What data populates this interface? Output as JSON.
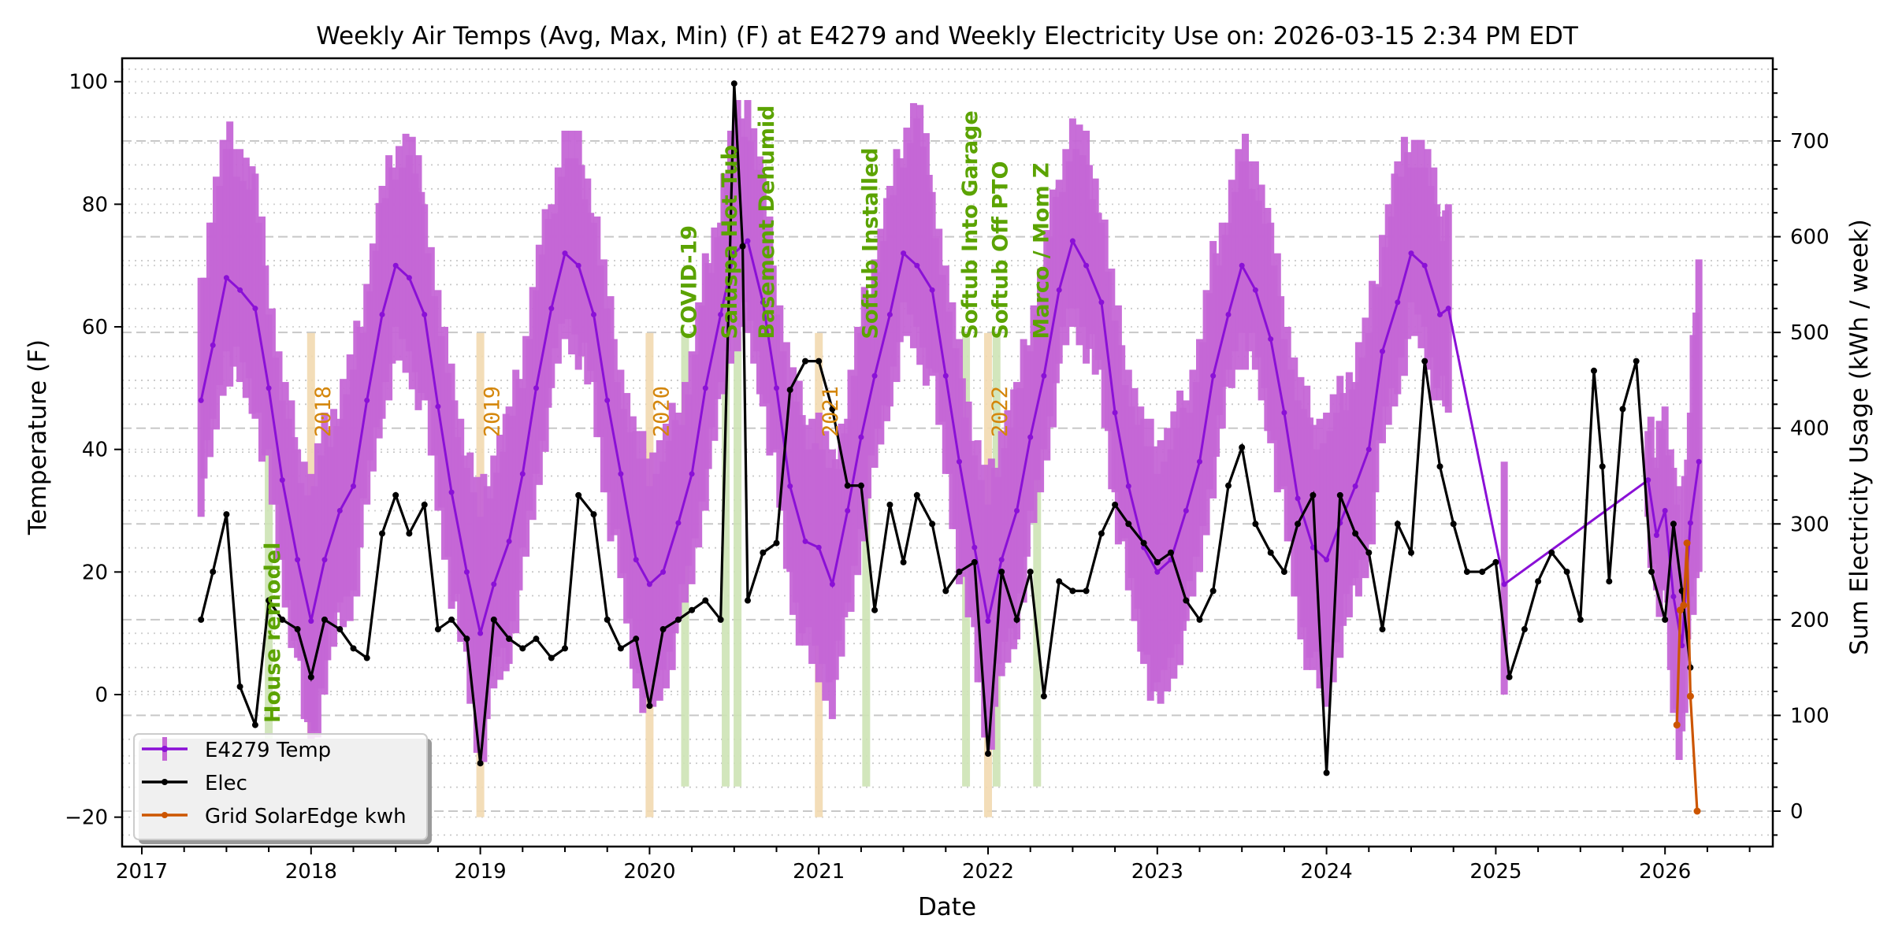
{
  "chart_data": {
    "type": "line",
    "title": "Weekly Air Temps (Avg, Max, Min) (F) at E4279 and Weekly Electricity Use on: 2026-03-15 2:34 PM EDT",
    "xlabel": "Date",
    "ylabel_left": "Temperature (F)",
    "ylabel_right": "Sum Electricity Usage (kWh / week)",
    "xlim": [
      2016.9,
      2026.6
    ],
    "ylim_left": [
      -25,
      104
    ],
    "ylim_right": [
      -37,
      786
    ],
    "x_ticks": [
      "2017",
      "2018",
      "2019",
      "2020",
      "2021",
      "2022",
      "2023",
      "2024",
      "2025",
      "2026"
    ],
    "y_ticks_left": [
      "-20",
      "0",
      "20",
      "40",
      "60",
      "80",
      "100"
    ],
    "y_ticks_right": [
      "0",
      "100",
      "200",
      "300",
      "400",
      "500",
      "600",
      "700"
    ],
    "grid": true,
    "legend_position": "lower-left",
    "legend": [
      "E4279 Temp",
      "Elec",
      "Grid SolarEdge kwh"
    ],
    "colors": {
      "temp_line": "#8a10d6",
      "temp_range": "#c566d6",
      "elec": "#000000",
      "solar": "#cc5500",
      "annotation_green": "#5ba300",
      "band_green": "#cde3b5",
      "annotation_year": "#d4860b",
      "band_year": "#f2d9b0"
    },
    "series": [
      {
        "name": "E4279 Temp",
        "axis": "left",
        "x": [
          2017.35,
          2017.42,
          2017.5,
          2017.58,
          2017.67,
          2017.75,
          2017.83,
          2017.92,
          2018.0,
          2018.08,
          2018.17,
          2018.25,
          2018.33,
          2018.42,
          2018.5,
          2018.58,
          2018.67,
          2018.75,
          2018.83,
          2018.92,
          2019.0,
          2019.08,
          2019.17,
          2019.25,
          2019.33,
          2019.42,
          2019.5,
          2019.58,
          2019.67,
          2019.75,
          2019.83,
          2019.92,
          2020.0,
          2020.08,
          2020.17,
          2020.25,
          2020.33,
          2020.42,
          2020.5,
          2020.58,
          2020.67,
          2020.75,
          2020.83,
          2020.92,
          2021.0,
          2021.08,
          2021.17,
          2021.25,
          2021.33,
          2021.42,
          2021.5,
          2021.58,
          2021.67,
          2021.75,
          2021.83,
          2021.92,
          2022.0,
          2022.08,
          2022.17,
          2022.25,
          2022.33,
          2022.42,
          2022.5,
          2022.58,
          2022.67,
          2022.75,
          2022.83,
          2022.92,
          2023.0,
          2023.08,
          2023.17,
          2023.25,
          2023.33,
          2023.42,
          2023.5,
          2023.58,
          2023.67,
          2023.75,
          2023.83,
          2023.92,
          2024.0,
          2024.08,
          2024.17,
          2024.25,
          2024.33,
          2024.42,
          2024.5,
          2024.58,
          2024.67,
          2024.72,
          2025.05,
          2025.9,
          2025.95,
          2026.0,
          2026.05,
          2026.1,
          2026.15,
          2026.2
        ],
        "avg": [
          48,
          57,
          68,
          66,
          63,
          50,
          35,
          22,
          12,
          22,
          30,
          34,
          48,
          62,
          70,
          68,
          62,
          47,
          33,
          20,
          10,
          18,
          25,
          36,
          50,
          63,
          72,
          70,
          62,
          48,
          36,
          22,
          18,
          20,
          28,
          36,
          50,
          62,
          72,
          74,
          64,
          50,
          34,
          25,
          24,
          18,
          30,
          42,
          52,
          62,
          72,
          70,
          66,
          52,
          38,
          24,
          12,
          22,
          30,
          42,
          52,
          66,
          74,
          70,
          64,
          46,
          34,
          24,
          20,
          22,
          30,
          38,
          52,
          62,
          70,
          66,
          58,
          46,
          32,
          24,
          22,
          28,
          34,
          40,
          56,
          64,
          72,
          70,
          62,
          63,
          18,
          35,
          26,
          30,
          16,
          8,
          28,
          38
        ],
        "min": [
          33,
          42,
          55,
          52,
          48,
          36,
          20,
          6,
          -12,
          4,
          12,
          16,
          32,
          48,
          56,
          54,
          48,
          32,
          18,
          4,
          -10,
          2,
          8,
          20,
          34,
          50,
          60,
          57,
          48,
          32,
          20,
          4,
          -2,
          2,
          12,
          20,
          34,
          48,
          60,
          60,
          50,
          36,
          18,
          8,
          4,
          0,
          12,
          26,
          38,
          50,
          60,
          58,
          52,
          38,
          22,
          8,
          -8,
          4,
          12,
          26,
          38,
          54,
          62,
          58,
          50,
          32,
          18,
          8,
          -2,
          4,
          12,
          22,
          36,
          50,
          58,
          54,
          44,
          30,
          14,
          4,
          0,
          10,
          16,
          24,
          42,
          52,
          60,
          58,
          48,
          48,
          4,
          26,
          16,
          18,
          0,
          -10,
          14,
          20
        ],
        "max": [
          64,
          80,
          90,
          88,
          82,
          66,
          50,
          40,
          34,
          42,
          48,
          54,
          66,
          80,
          88,
          90,
          80,
          64,
          50,
          40,
          30,
          38,
          44,
          54,
          68,
          80,
          90,
          88,
          80,
          64,
          52,
          40,
          38,
          40,
          46,
          54,
          68,
          80,
          92,
          96,
          82,
          66,
          52,
          44,
          44,
          36,
          48,
          60,
          70,
          80,
          90,
          96,
          82,
          68,
          54,
          42,
          32,
          42,
          48,
          60,
          70,
          84,
          92,
          88,
          80,
          62,
          52,
          42,
          40,
          42,
          48,
          56,
          70,
          80,
          88,
          86,
          74,
          62,
          50,
          44,
          44,
          48,
          54,
          60,
          74,
          84,
          90,
          88,
          78,
          78,
          34,
          46,
          38,
          46,
          34,
          28,
          48,
          71
        ]
      },
      {
        "name": "Elec",
        "axis": "right",
        "x": [
          2017.35,
          2017.42,
          2017.5,
          2017.58,
          2017.67,
          2017.75,
          2017.83,
          2017.92,
          2018.0,
          2018.08,
          2018.17,
          2018.25,
          2018.33,
          2018.42,
          2018.5,
          2018.58,
          2018.67,
          2018.75,
          2018.83,
          2018.92,
          2019.0,
          2019.08,
          2019.17,
          2019.25,
          2019.33,
          2019.42,
          2019.5,
          2019.58,
          2019.67,
          2019.75,
          2019.83,
          2019.92,
          2020.0,
          2020.08,
          2020.17,
          2020.25,
          2020.33,
          2020.42,
          2020.5,
          2020.55,
          2020.58,
          2020.67,
          2020.75,
          2020.83,
          2020.92,
          2021.0,
          2021.08,
          2021.17,
          2021.25,
          2021.33,
          2021.42,
          2021.5,
          2021.58,
          2021.67,
          2021.75,
          2021.83,
          2021.92,
          2022.0,
          2022.08,
          2022.17,
          2022.25,
          2022.33,
          2022.42,
          2022.5,
          2022.58,
          2022.67,
          2022.75,
          2022.83,
          2022.92,
          2023.0,
          2023.08,
          2023.17,
          2023.25,
          2023.33,
          2023.42,
          2023.5,
          2023.58,
          2023.67,
          2023.75,
          2023.83,
          2023.92,
          2024.0,
          2024.08,
          2024.17,
          2024.25,
          2024.33,
          2024.42,
          2024.5,
          2024.58,
          2024.67,
          2024.75,
          2024.83,
          2024.92,
          2025.0,
          2025.08,
          2025.17,
          2025.25,
          2025.33,
          2025.42,
          2025.5,
          2025.58,
          2025.63,
          2025.67,
          2025.75,
          2025.83,
          2025.92,
          2026.0,
          2026.05,
          2026.1,
          2026.15
        ],
        "values": [
          200,
          250,
          310,
          130,
          90,
          220,
          200,
          190,
          140,
          200,
          190,
          170,
          160,
          290,
          330,
          290,
          320,
          190,
          200,
          180,
          50,
          200,
          180,
          170,
          180,
          160,
          170,
          330,
          310,
          200,
          170,
          180,
          110,
          190,
          200,
          210,
          220,
          200,
          760,
          590,
          220,
          270,
          280,
          440,
          470,
          470,
          420,
          340,
          340,
          210,
          320,
          260,
          330,
          300,
          230,
          250,
          260,
          60,
          250,
          200,
          250,
          120,
          240,
          230,
          230,
          290,
          320,
          300,
          280,
          260,
          270,
          220,
          200,
          230,
          340,
          380,
          300,
          270,
          250,
          300,
          330,
          40,
          330,
          290,
          270,
          190,
          300,
          270,
          470,
          360,
          300,
          250,
          250,
          260,
          140,
          190,
          240,
          270,
          250,
          200,
          460,
          360,
          240,
          420,
          470,
          250,
          200,
          300,
          230,
          150
        ],
        "notes": "approximate weekly-to-monthly sampling read from chart"
      },
      {
        "name": "Grid SolarEdge kwh",
        "axis": "right",
        "x": [
          2026.07,
          2026.09,
          2026.11,
          2026.13,
          2026.15,
          2026.19
        ],
        "values": [
          90,
          210,
          215,
          280,
          120,
          0
        ]
      }
    ],
    "annotations": {
      "events": [
        {
          "label": "House remodel",
          "x": 2017.75
        },
        {
          "label": "COVID-19",
          "x": 2020.21
        },
        {
          "label": "Saluspa Hot Tub",
          "x": 2020.45
        },
        {
          "label": "Basement Dehumid",
          "x": 2020.52
        },
        {
          "label": "Softub Installed",
          "x": 2021.28
        },
        {
          "label": "Softub Into Garage",
          "x": 2021.87
        },
        {
          "label": "Softub Off PTO",
          "x": 2022.05
        },
        {
          "label": "Marco / Mom Z",
          "x": 2022.29
        }
      ],
      "years": [
        {
          "label": "2018",
          "x": 2018.0
        },
        {
          "label": "2019",
          "x": 2019.0
        },
        {
          "label": "2020",
          "x": 2020.0
        },
        {
          "label": "2021",
          "x": 2021.0
        },
        {
          "label": "2022",
          "x": 2022.0
        }
      ]
    }
  }
}
